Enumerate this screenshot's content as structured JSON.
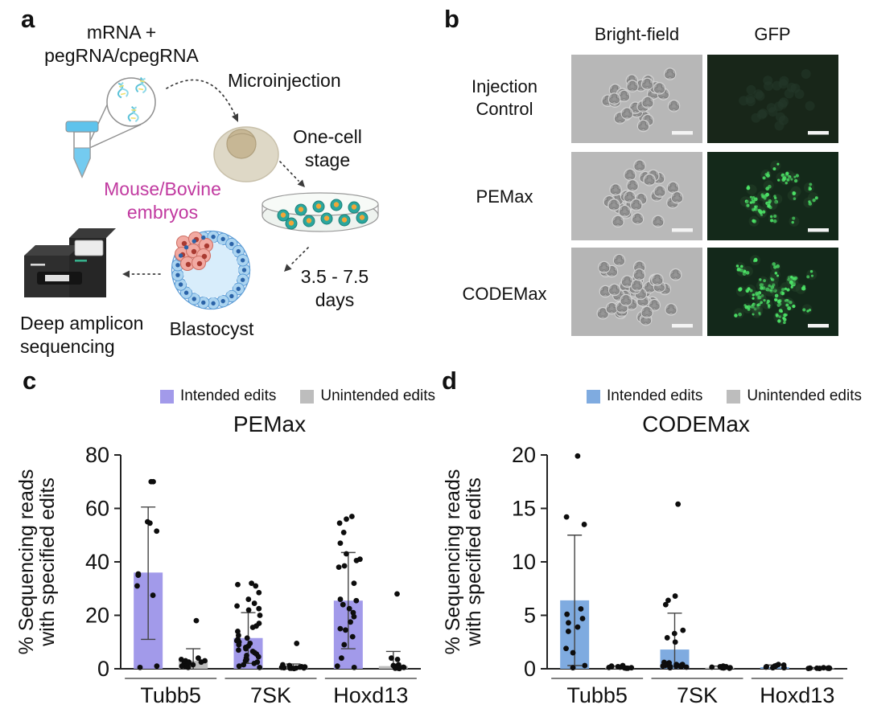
{
  "panels": {
    "a": "a",
    "b": "b",
    "c": "c",
    "d": "d"
  },
  "panel_a": {
    "mrna_peg_label": "mRNA +\npegRNA/cpegRNA",
    "microinjection_label": "Microinjection",
    "one_cell_label": "One-cell\nstage",
    "mouse_bovine_label": "Mouse/Bovine\nembryos",
    "mouse_bovine_color": "#c13aa0",
    "days_label": "3.5 - 7.5\ndays",
    "blastocyst_label": "Blastocyst",
    "sequencing_label": "Deep amplicon\nsequencing"
  },
  "panel_b": {
    "col_headers": [
      "Bright-field",
      "GFP"
    ],
    "row_labels": [
      "Injection\nControl",
      "PEMax",
      "CODEMax"
    ]
  },
  "chart_data": [
    {
      "panel": "c",
      "type": "bar",
      "title": "PEMax",
      "ylabel": "% Sequencing reads\nwith specified edits",
      "ylim": [
        0,
        80
      ],
      "yticks": [
        0,
        20,
        40,
        60,
        80
      ],
      "grid": false,
      "legend_position": "top",
      "categories": [
        "Tubb5",
        "7SK",
        "Hoxd13"
      ],
      "series": [
        {
          "name": "Intended edits",
          "color": "#a29aea",
          "bars": [
            36,
            11.5,
            25.5
          ],
          "err_low": [
            11,
            2,
            7.5
          ],
          "err_high": [
            60.5,
            21,
            43.5
          ],
          "points": [
            [
              70,
              70,
              55,
              54.5,
              51.5,
              35.5,
              35,
              31,
              27.5,
              1,
              0.5
            ],
            [
              32,
              31.5,
              31,
              28.5,
              26,
              24.5,
              23.5,
              22.5,
              22,
              20,
              17,
              16,
              15.5,
              14,
              12.5,
              11.5,
              11,
              10.5,
              10,
              9.5,
              9,
              8.5,
              8,
              8,
              7.5,
              7,
              6.5,
              6,
              5.5,
              5,
              4.5,
              4,
              3.5,
              3,
              2.5,
              2,
              1.5,
              1,
              0.5
            ],
            [
              57,
              56,
              54.5,
              51,
              47,
              43,
              41,
              40.5,
              38.5,
              38,
              32,
              26,
              25.5,
              24,
              22.5,
              21,
              19.5,
              17.5,
              15,
              14.5,
              12,
              9,
              4,
              1,
              0.5
            ]
          ]
        },
        {
          "name": "Unintended edits",
          "color": "#bdbdbd",
          "bars": [
            3,
            0.6,
            1
          ],
          "err_low": [
            0,
            0,
            0
          ],
          "err_high": [
            7.5,
            1.8,
            6.5
          ],
          "points": [
            [
              18,
              4,
              3.5,
              3,
              3,
              2.5,
              2.5,
              2,
              2,
              1.5,
              1,
              1,
              0.5
            ],
            [
              9.5,
              1.5,
              1.2,
              1,
              0.8,
              0.7,
              0.6,
              0.5,
              0.4,
              0.3,
              0.3,
              0.2,
              0.2,
              0.1
            ],
            [
              28,
              4,
              3.5,
              1.5,
              1.2,
              1,
              0.8,
              0.6,
              0.5,
              0.4,
              0.3,
              0.2,
              0.2,
              0.1
            ]
          ]
        }
      ]
    },
    {
      "panel": "d",
      "type": "bar",
      "title": "CODEMax",
      "ylabel": "% Sequencing reads\nwith specified edits",
      "ylim": [
        0,
        20
      ],
      "yticks": [
        0,
        5,
        10,
        15,
        20
      ],
      "grid": false,
      "legend_position": "top",
      "categories": [
        "Tubb5",
        "7SK",
        "Hoxd13"
      ],
      "series": [
        {
          "name": "Intended edits",
          "color": "#7fabe0",
          "bars": [
            6.4,
            1.8,
            0.15
          ],
          "err_low": [
            0.3,
            0,
            0
          ],
          "err_high": [
            12.5,
            5.2,
            0.35
          ],
          "points": [
            [
              19.9,
              14.2,
              13.5,
              5.6,
              5.1,
              4.7,
              4.3,
              3.9,
              3.5,
              1.9,
              1.5,
              0.3,
              0.1
            ],
            [
              15.4,
              6.8,
              6.4,
              6.0,
              3.6,
              3.3,
              2.9,
              2.5,
              0.6,
              0.55,
              0.5,
              0.45,
              0.4,
              0.4,
              0.35,
              0.35,
              0.3,
              0.3,
              0.3,
              0.25,
              0.25,
              0.2,
              0.2,
              0.2,
              0.15,
              0.1
            ],
            [
              0.4,
              0.35,
              0.3,
              0.25,
              0.2,
              0.2,
              0.15,
              0.1,
              0.1
            ]
          ]
        },
        {
          "name": "Unintended edits",
          "color": "#bdbdbd",
          "bars": [
            0.1,
            0.1,
            0.05
          ],
          "err_low": [
            0,
            0,
            0
          ],
          "err_high": [
            0.25,
            0.25,
            0.12
          ],
          "points": [
            [
              0.3,
              0.25,
              0.2,
              0.2,
              0.15,
              0.12,
              0.1,
              0.08,
              0.05,
              0.05
            ],
            [
              0.25,
              0.2,
              0.2,
              0.15,
              0.15,
              0.12,
              0.1,
              0.1,
              0.08,
              0.05
            ],
            [
              0.1,
              0.08,
              0.06,
              0.05,
              0.05,
              0.05,
              0.04,
              0.04,
              0.03,
              0.03
            ]
          ]
        }
      ]
    }
  ]
}
